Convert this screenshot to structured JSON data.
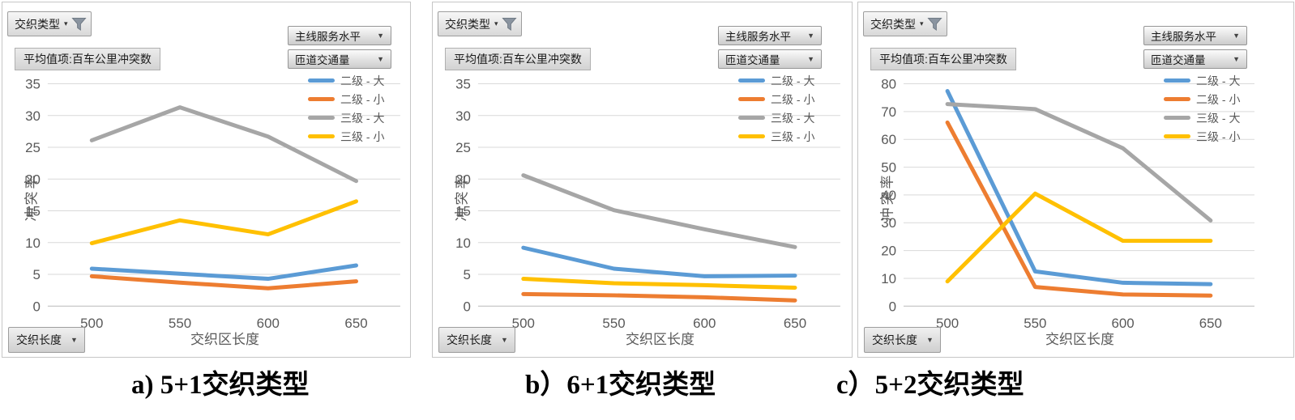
{
  "controls": {
    "filter_label": "交织类型",
    "filter_caret": "▾",
    "value_field_label": "平均值项:百车公里冲突数",
    "dropdown1_label": "主线服务水平",
    "dropdown2_label": "匝道交通量",
    "dropdown_caret": "▼",
    "axis_field_button_label": "交织长度"
  },
  "palette": {
    "blue": "#5B9BD5",
    "orange": "#ED7D31",
    "gray": "#A6A6A6",
    "yellow": "#FFC000",
    "tick_text": "#595959",
    "gridline": "#d9d9d9"
  },
  "chart_data": [
    {
      "type": "line",
      "title": "a) 5+1交织类型",
      "xlabel": "交织区长度",
      "ylabel": "冲突率",
      "x": [
        500,
        550,
        600,
        650
      ],
      "ylim": [
        0,
        35
      ],
      "ytick_step": 5,
      "yticks": [
        0,
        5,
        10,
        15,
        20,
        25,
        30,
        35
      ],
      "grid": true,
      "legend_position": "inside-top-right",
      "series": [
        {
          "name": "二级 - 大",
          "color": "#5B9BD5",
          "values": [
            5.9,
            5.1,
            4.3,
            6.4
          ]
        },
        {
          "name": "二级 - 小",
          "color": "#ED7D31",
          "values": [
            4.7,
            3.7,
            2.8,
            3.9
          ]
        },
        {
          "name": "三级 - 大",
          "color": "#A6A6A6",
          "values": [
            26.1,
            31.3,
            26.7,
            19.7
          ]
        },
        {
          "name": "三级 - 小",
          "color": "#FFC000",
          "values": [
            9.9,
            13.5,
            11.3,
            16.5
          ]
        }
      ]
    },
    {
      "type": "line",
      "title": "b）6+1交织类型",
      "xlabel": "交织区长度",
      "ylabel": "冲突率",
      "x": [
        500,
        550,
        600,
        650
      ],
      "ylim": [
        0,
        35
      ],
      "ytick_step": 5,
      "yticks": [
        0,
        5,
        10,
        15,
        20,
        25,
        30,
        35
      ],
      "grid": true,
      "legend_position": "inside-top-right",
      "series": [
        {
          "name": "二级 - 大",
          "color": "#5B9BD5",
          "values": [
            9.2,
            5.9,
            4.7,
            4.8
          ]
        },
        {
          "name": "二级 - 小",
          "color": "#ED7D31",
          "values": [
            1.9,
            1.7,
            1.4,
            0.9
          ]
        },
        {
          "name": "三级 - 大",
          "color": "#A6A6A6",
          "values": [
            20.6,
            15.1,
            12.1,
            9.3
          ]
        },
        {
          "name": "三级 - 小",
          "color": "#FFC000",
          "values": [
            4.3,
            3.6,
            3.3,
            2.9
          ]
        }
      ]
    },
    {
      "type": "line",
      "title": "c）5+2交织类型",
      "xlabel": "交织区长度",
      "ylabel": "冲突率",
      "x": [
        500,
        550,
        600,
        650
      ],
      "ylim": [
        0,
        80
      ],
      "ytick_step": 10,
      "yticks": [
        0,
        10,
        20,
        30,
        40,
        50,
        60,
        70,
        80
      ],
      "grid": true,
      "legend_position": "inside-top-right",
      "series": [
        {
          "name": "二级 - 大",
          "color": "#5B9BD5",
          "values": [
            77.4,
            12.5,
            8.4,
            7.9
          ]
        },
        {
          "name": "二级 - 小",
          "color": "#ED7D31",
          "values": [
            66.1,
            6.9,
            4.2,
            3.8
          ]
        },
        {
          "name": "三级 - 大",
          "color": "#A6A6A6",
          "values": [
            72.7,
            70.9,
            56.8,
            30.8
          ]
        },
        {
          "name": "三级 - 小",
          "color": "#FFC000",
          "values": [
            8.9,
            40.5,
            23.5,
            23.5
          ]
        }
      ]
    }
  ]
}
